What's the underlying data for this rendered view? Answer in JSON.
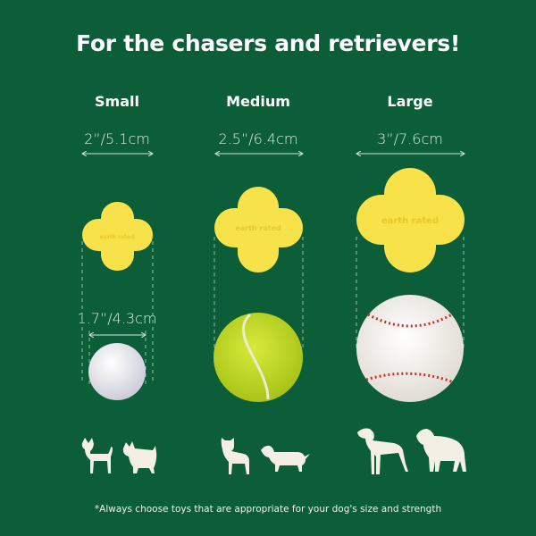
{
  "title": "For the chasers and retrievers!",
  "sizes": [
    {
      "label": "Small",
      "dimension": "2”/5.1cm",
      "comparison_dimension": "1.7”/4.3cm",
      "comparison_object": "golf ball"
    },
    {
      "label": "Medium",
      "dimension": "2.5”/6.4cm",
      "comparison_object": "tennis ball"
    },
    {
      "label": "Large",
      "dimension": "3”/7.6cm",
      "comparison_object": "baseball"
    }
  ],
  "toy_brand": "earth rated",
  "footnote": "*Always choose toys that are appropriate for your dog's size and strength",
  "colors": {
    "background": "#0c5e38",
    "toy": "#f7e24a",
    "tennis": "#c9e022",
    "stitch": "#c8302a"
  }
}
